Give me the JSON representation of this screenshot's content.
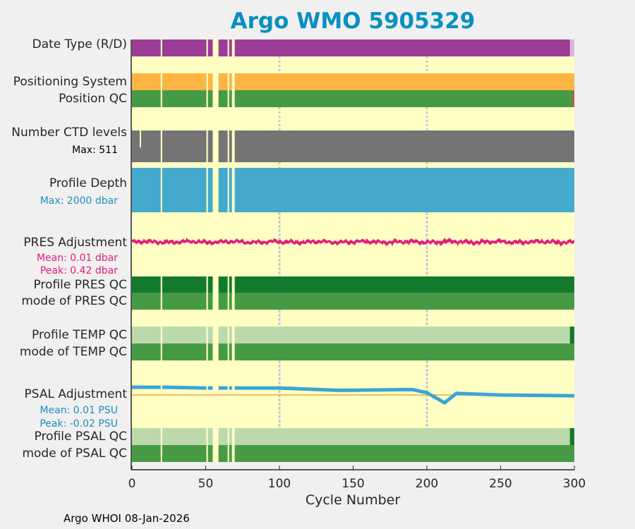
{
  "title": "Argo WMO 5905329",
  "labels": {
    "date_type": "Date Type (R/D)",
    "pos_sys": "Positioning System",
    "pos_qc": "Position QC",
    "nctd": "Number CTD levels",
    "nctd_max": "Max: 511",
    "depth": "Profile Depth",
    "depth_max": "Max: 2000 dbar",
    "pres_adj": "PRES Adjustment",
    "pres_mean": "Mean: 0.01 dbar",
    "pres_peak": "Peak: 0.42 dbar",
    "pres_qc": "Profile PRES QC",
    "pres_mode": "mode of PRES QC",
    "temp_qc": "Profile TEMP QC",
    "temp_mode": "mode of TEMP QC",
    "psal_adj": "PSAL Adjustment",
    "psal_mean": "Mean: 0.01 PSU",
    "psal_peak": "Peak: -0.02 PSU",
    "psal_qc": "Profile PSAL QC",
    "psal_mode": "mode of PSAL QC"
  },
  "footer": "Argo WHOI 08-Jan-2026",
  "colors": {
    "bg": "#ffffc4",
    "purple": "#9b3c96",
    "pink_light": "#dcb4dc",
    "orange": "#fdb443",
    "green": "#469a46",
    "dark_green": "#137a2d",
    "light_green": "#bcd9ac",
    "red": "#e8413c",
    "gray": "#747474",
    "blue": "#43a9cd",
    "magenta": "#e6197d",
    "psal": "#3aa5d6",
    "zero": "#f3a53a"
  },
  "chart_data": {
    "type": "timeline",
    "xlabel": "Cycle Number",
    "xlim": [
      0,
      300
    ],
    "xticks": [
      "0",
      "50",
      "100",
      "150",
      "200",
      "250",
      "300"
    ],
    "gridlines": [
      100,
      200
    ],
    "missing_cycles": [
      [
        19.5,
        20.5
      ],
      [
        50.5,
        51.5
      ],
      [
        54.8,
        58.7
      ],
      [
        64.9,
        65.9
      ],
      [
        67.8,
        69.7
      ]
    ],
    "date_type": {
      "realtime_until": 297,
      "delayed_after": 297
    },
    "position_qc_bad_cycles": [
      299
    ],
    "qc_profile_good_until": 297,
    "pres_adjustment": {
      "mean": 0.01,
      "peak": 0.42,
      "noise_amplitude": 0.3
    },
    "psal_adjustment": {
      "x": [
        0,
        22,
        50,
        100,
        140,
        190,
        200,
        212,
        220,
        250,
        300
      ],
      "y": [
        0.02,
        0.02,
        0.018,
        0.018,
        0.012,
        0.014,
        0.006,
        -0.02,
        0.004,
        0.0,
        -0.002
      ]
    }
  }
}
